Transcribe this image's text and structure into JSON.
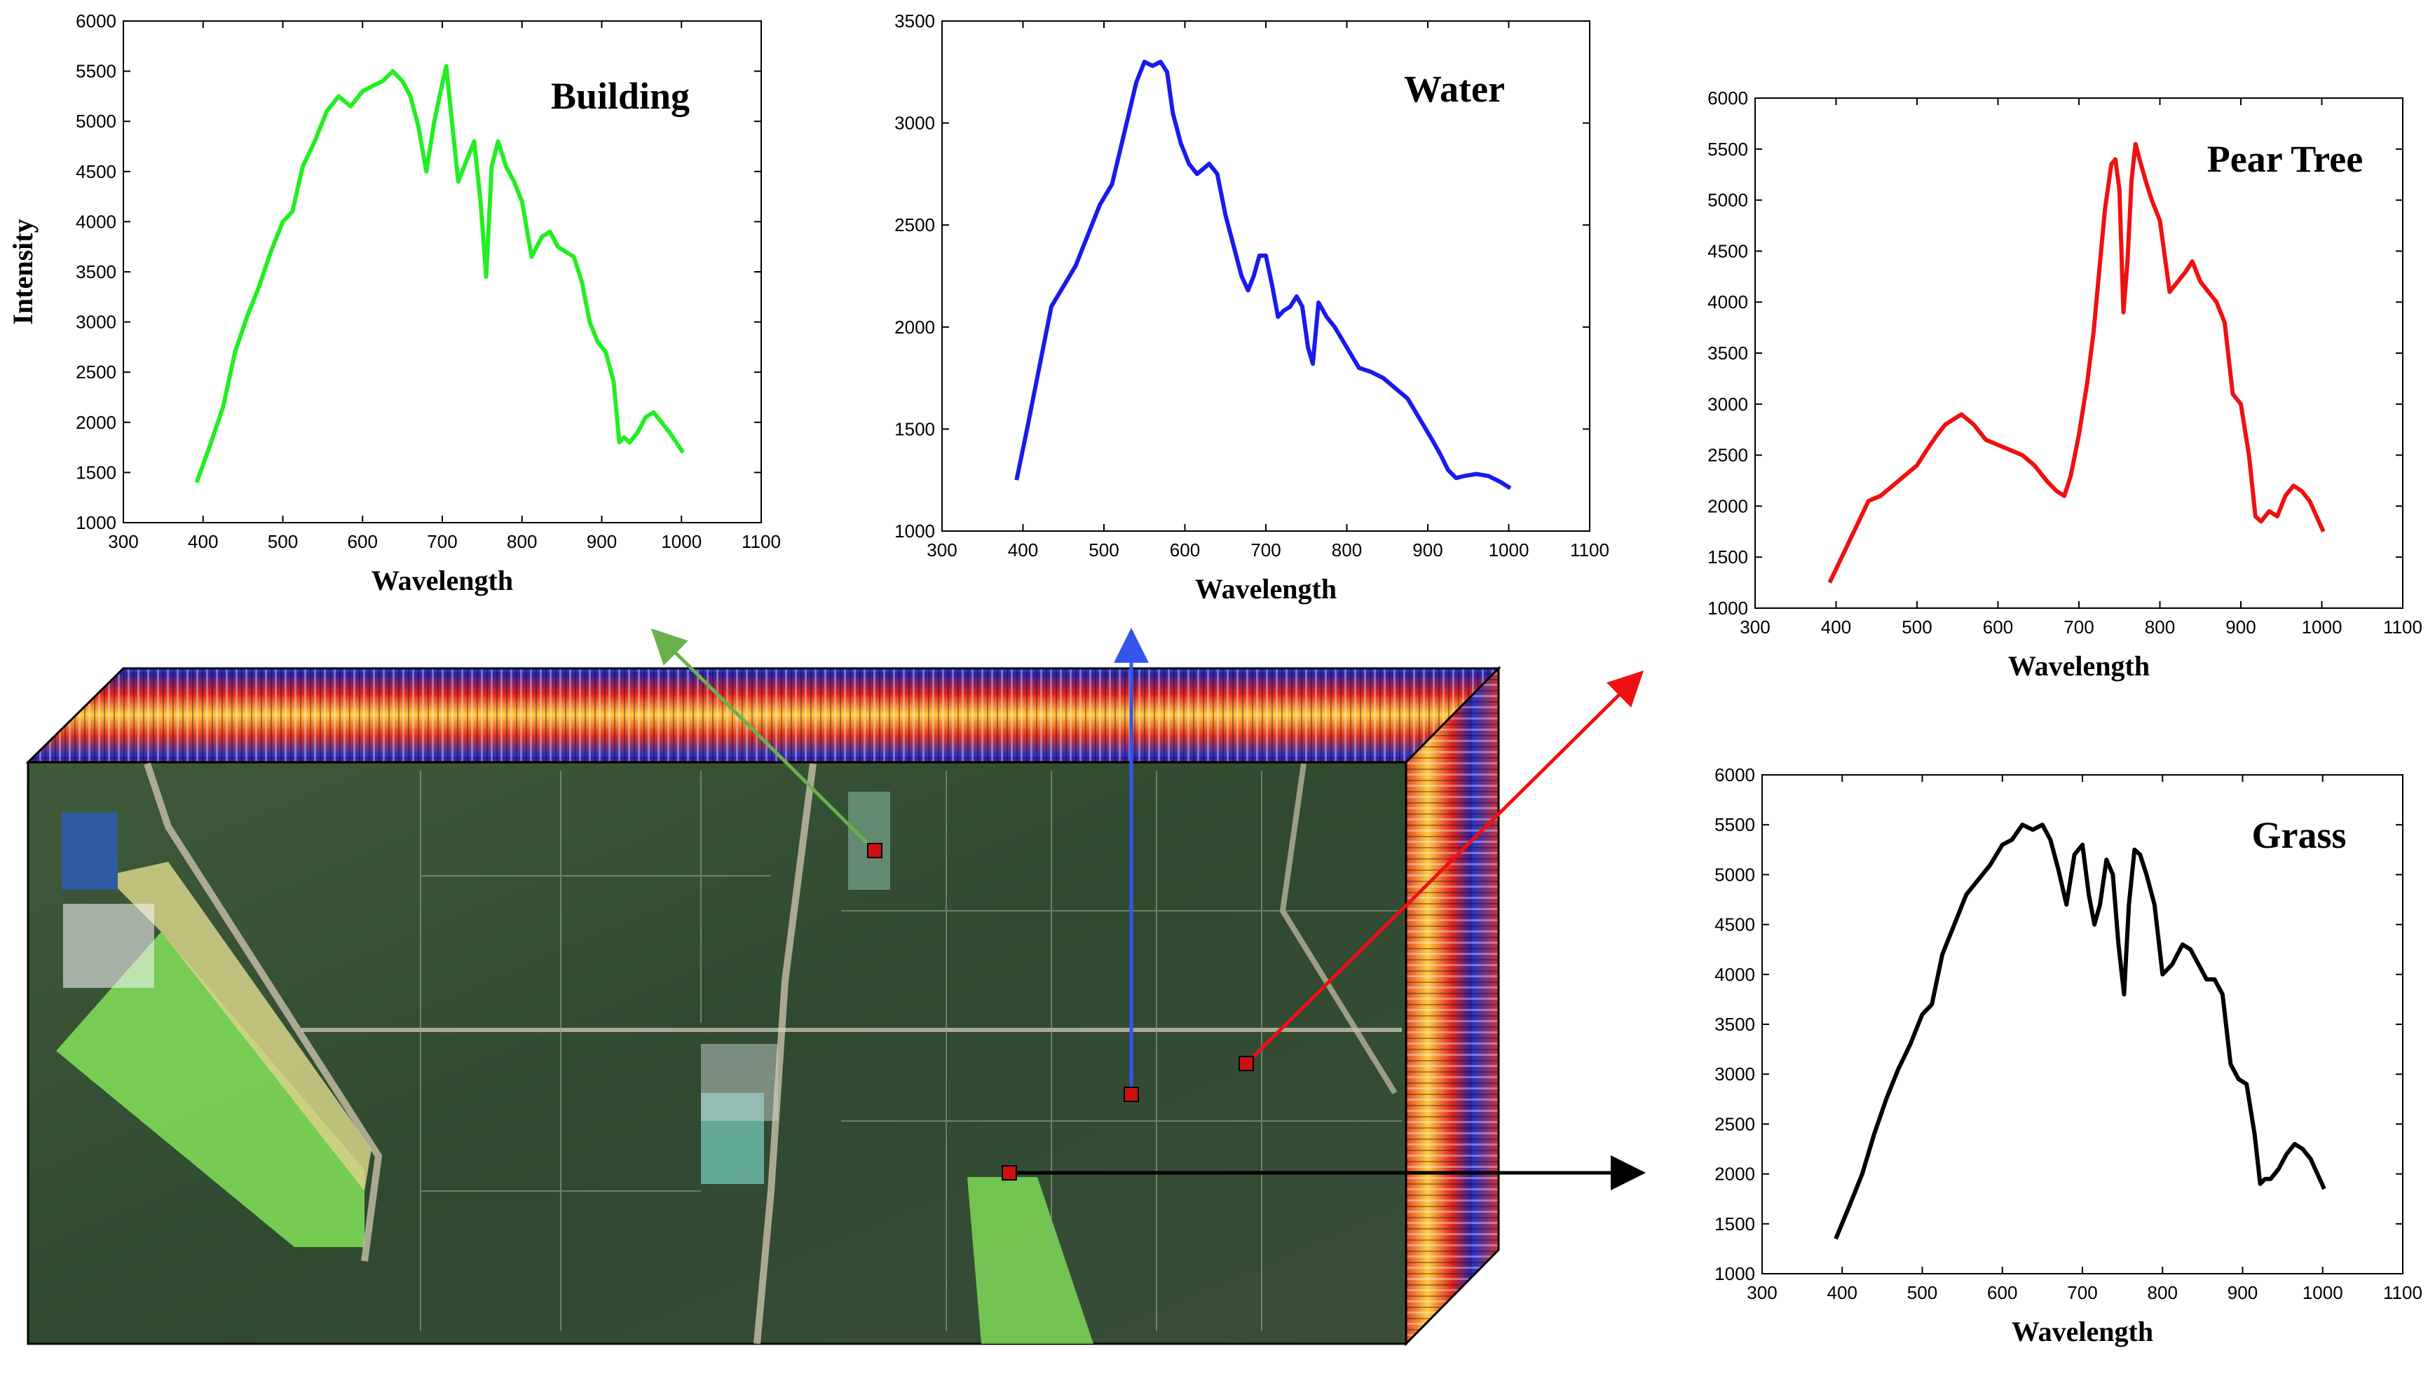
{
  "figure": {
    "description_labels": {
      "cube": "hyperspectral image cube"
    }
  },
  "chart_data": [
    {
      "type": "line",
      "title": "Building",
      "xlabel": "Wavelength",
      "ylabel": "Intensity",
      "xlim": [
        300,
        1100
      ],
      "ylim": [
        1000,
        6000
      ],
      "xticks": [
        300,
        400,
        500,
        600,
        700,
        800,
        900,
        1000,
        1100
      ],
      "yticks": [
        1000,
        1500,
        2000,
        2500,
        3000,
        3500,
        4000,
        4500,
        5000,
        5500,
        6000
      ],
      "color": "#22ee22",
      "series": [
        {
          "name": "Building",
          "x": [
            392,
            410,
            425,
            440,
            455,
            470,
            485,
            500,
            512,
            525,
            540,
            555,
            570,
            585,
            600,
            612,
            625,
            638,
            650,
            660,
            670,
            680,
            690,
            698,
            705,
            712,
            720,
            730,
            740,
            748,
            755,
            762,
            770,
            780,
            790,
            800,
            812,
            825,
            835,
            845,
            855,
            865,
            875,
            885,
            895,
            905,
            915,
            922,
            928,
            935,
            945,
            955,
            965,
            975,
            985,
            1002
          ],
          "y": [
            1400,
            1800,
            2150,
            2700,
            3050,
            3350,
            3700,
            4000,
            4100,
            4550,
            4800,
            5100,
            5250,
            5150,
            5300,
            5350,
            5400,
            5500,
            5400,
            5250,
            4950,
            4500,
            5000,
            5300,
            5550,
            5000,
            4400,
            4600,
            4800,
            4200,
            3450,
            4550,
            4800,
            4550,
            4400,
            4200,
            3650,
            3850,
            3900,
            3750,
            3700,
            3650,
            3400,
            3000,
            2800,
            2700,
            2400,
            1800,
            1850,
            1800,
            1900,
            2050,
            2100,
            2000,
            1900,
            1700
          ]
        }
      ]
    },
    {
      "type": "line",
      "title": "Water",
      "xlabel": "Wavelength",
      "ylabel": "",
      "xlim": [
        300,
        1100
      ],
      "ylim": [
        1000,
        3500
      ],
      "xticks": [
        300,
        400,
        500,
        600,
        700,
        800,
        900,
        1000,
        1100
      ],
      "yticks": [
        1000,
        1500,
        2000,
        2500,
        3000,
        3500
      ],
      "color": "#1a1aee",
      "series": [
        {
          "name": "Water",
          "x": [
            392,
            405,
            420,
            435,
            450,
            465,
            480,
            495,
            510,
            525,
            540,
            550,
            560,
            570,
            578,
            585,
            595,
            605,
            615,
            630,
            640,
            650,
            660,
            670,
            678,
            685,
            692,
            700,
            708,
            715,
            722,
            730,
            738,
            745,
            752,
            758,
            765,
            775,
            785,
            800,
            815,
            830,
            845,
            860,
            875,
            890,
            905,
            915,
            925,
            935,
            945,
            960,
            975,
            990,
            1002
          ],
          "y": [
            1250,
            1500,
            1800,
            2100,
            2200,
            2300,
            2450,
            2600,
            2700,
            2950,
            3200,
            3300,
            3280,
            3300,
            3250,
            3050,
            2900,
            2800,
            2750,
            2800,
            2750,
            2550,
            2400,
            2250,
            2180,
            2250,
            2350,
            2350,
            2200,
            2050,
            2080,
            2100,
            2150,
            2100,
            1900,
            1820,
            2120,
            2050,
            2000,
            1900,
            1800,
            1780,
            1750,
            1700,
            1650,
            1550,
            1450,
            1380,
            1300,
            1260,
            1270,
            1280,
            1270,
            1240,
            1210
          ]
        }
      ]
    },
    {
      "type": "line",
      "title": "Pear Tree",
      "xlabel": "Wavelength",
      "ylabel": "",
      "xlim": [
        300,
        1100
      ],
      "ylim": [
        1000,
        6000
      ],
      "xticks": [
        300,
        400,
        500,
        600,
        700,
        800,
        900,
        1000,
        1100
      ],
      "yticks": [
        1000,
        1500,
        2000,
        2500,
        3000,
        3500,
        4000,
        4500,
        5000,
        5500,
        6000
      ],
      "color": "#ee1111",
      "series": [
        {
          "name": "Pear Tree",
          "x": [
            392,
            410,
            425,
            440,
            455,
            470,
            485,
            500,
            512,
            525,
            535,
            545,
            555,
            570,
            585,
            600,
            615,
            630,
            645,
            660,
            672,
            682,
            690,
            700,
            710,
            718,
            725,
            732,
            740,
            745,
            750,
            755,
            760,
            765,
            770,
            775,
            782,
            790,
            800,
            812,
            822,
            832,
            840,
            850,
            860,
            870,
            880,
            890,
            900,
            910,
            918,
            925,
            935,
            945,
            955,
            965,
            975,
            985,
            1002
          ],
          "y": [
            1250,
            1550,
            1800,
            2050,
            2100,
            2200,
            2300,
            2400,
            2550,
            2700,
            2800,
            2850,
            2900,
            2800,
            2650,
            2600,
            2550,
            2500,
            2400,
            2250,
            2150,
            2100,
            2300,
            2700,
            3200,
            3700,
            4300,
            4900,
            5350,
            5400,
            5100,
            3900,
            4400,
            5200,
            5550,
            5400,
            5200,
            5000,
            4800,
            4100,
            4200,
            4300,
            4400,
            4200,
            4100,
            4000,
            3800,
            3100,
            3000,
            2500,
            1900,
            1850,
            1950,
            1900,
            2100,
            2200,
            2150,
            2050,
            1750
          ]
        }
      ]
    },
    {
      "type": "line",
      "title": "Grass",
      "xlabel": "Wavelength",
      "ylabel": "",
      "xlim": [
        300,
        1100
      ],
      "ylim": [
        1000,
        6000
      ],
      "xticks": [
        300,
        400,
        500,
        600,
        700,
        800,
        900,
        1000,
        1100
      ],
      "yticks": [
        1000,
        1500,
        2000,
        2500,
        3000,
        3500,
        4000,
        4500,
        5000,
        5500,
        6000
      ],
      "color": "#000000",
      "series": [
        {
          "name": "Grass",
          "x": [
            392,
            410,
            425,
            440,
            455,
            470,
            485,
            500,
            512,
            525,
            540,
            555,
            570,
            585,
            600,
            612,
            625,
            638,
            650,
            660,
            670,
            680,
            690,
            700,
            708,
            715,
            722,
            730,
            738,
            745,
            752,
            758,
            765,
            772,
            780,
            790,
            800,
            812,
            825,
            835,
            845,
            855,
            865,
            875,
            885,
            895,
            905,
            915,
            922,
            928,
            935,
            945,
            955,
            965,
            975,
            985,
            1002
          ],
          "y": [
            1350,
            1700,
            2000,
            2400,
            2750,
            3050,
            3300,
            3600,
            3700,
            4200,
            4500,
            4800,
            4950,
            5100,
            5300,
            5350,
            5500,
            5450,
            5500,
            5350,
            5050,
            4700,
            5200,
            5300,
            4800,
            4500,
            4700,
            5150,
            5000,
            4300,
            3800,
            4700,
            5250,
            5200,
            5000,
            4700,
            4000,
            4100,
            4300,
            4250,
            4100,
            3950,
            3950,
            3800,
            3100,
            2950,
            2900,
            2400,
            1900,
            1950,
            1950,
            2050,
            2200,
            2300,
            2250,
            2150,
            1850
          ]
        }
      ]
    }
  ],
  "colors": {
    "building_arrow": "#6ab04c",
    "water_arrow": "#3355ee",
    "peartree_arrow": "#ee1111",
    "grass_arrow": "#000000",
    "marker": "#cc1111"
  }
}
